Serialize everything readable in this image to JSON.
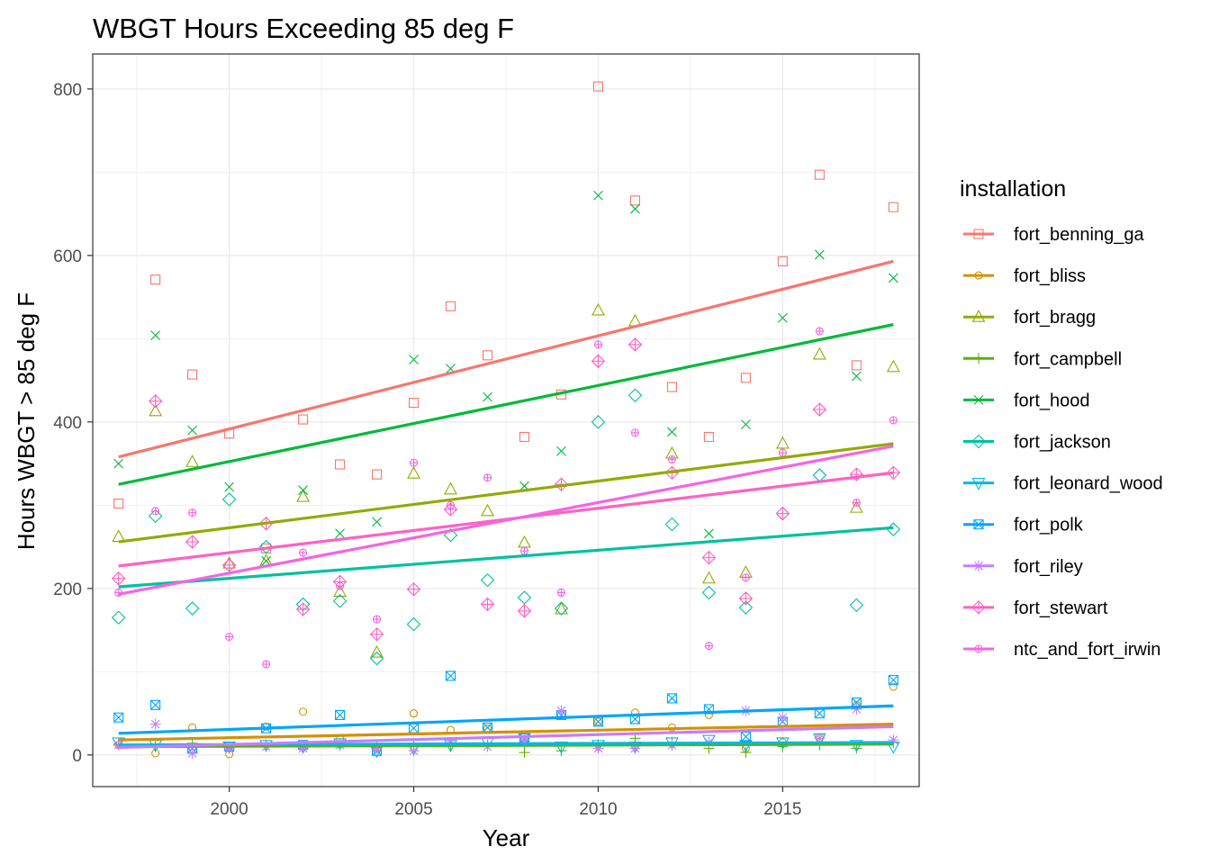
{
  "chart_data": {
    "type": "scatter",
    "title": "WBGT Hours Exceeding 85 deg F",
    "xlabel": "Year",
    "ylabel": "Hours WBGT > 85 deg F",
    "xlim": [
      1996.3,
      2018.7
    ],
    "ylim": [
      -38,
      842
    ],
    "x_ticks": [
      2000,
      2005,
      2010,
      2015
    ],
    "y_ticks": [
      0,
      200,
      400,
      600,
      800
    ],
    "grid": true,
    "legend_title": "installation",
    "legend_position": "right",
    "trend_lines": "linear fit per installation",
    "years": [
      1997,
      1998,
      1999,
      2000,
      2001,
      2002,
      2003,
      2004,
      2005,
      2006,
      2007,
      2008,
      2009,
      2010,
      2011,
      2012,
      2013,
      2014,
      2015,
      2016,
      2017,
      2018
    ],
    "series": [
      {
        "name": "fort_benning_ga",
        "color": "#F8766D",
        "shape": "square",
        "values": [
          302,
          571,
          457,
          386,
          248,
          403,
          349,
          337,
          423,
          539,
          480,
          382,
          433,
          803,
          666,
          442,
          382,
          453,
          593,
          697,
          468,
          658
        ],
        "fit": [
          358,
          593
        ]
      },
      {
        "name": "fort_bliss",
        "color": "#D39200",
        "shape": "circle",
        "values": [
          12,
          2,
          33,
          1,
          34,
          52,
          20,
          8,
          50,
          30,
          32,
          18,
          48,
          40,
          51,
          33,
          48,
          8,
          15,
          20,
          60,
          82
        ],
        "fit": [
          18,
          37
        ]
      },
      {
        "name": "fort_bragg",
        "color": "#93AA00",
        "shape": "triangle",
        "values": [
          262,
          413,
          352,
          230,
          233,
          310,
          196,
          123,
          338,
          319,
          293,
          255,
          175,
          534,
          521,
          362,
          212,
          219,
          374,
          481,
          297,
          466
        ],
        "fit": [
          256,
          374
        ]
      },
      {
        "name": "fort_campbell",
        "color": "#5BB300",
        "shape": "plus",
        "values": [
          13,
          10,
          14,
          8,
          12,
          11,
          12,
          9,
          10,
          10,
          12,
          3,
          5,
          12,
          20,
          15,
          8,
          3,
          10,
          12,
          8,
          15
        ],
        "fit": [
          10,
          13
        ]
      },
      {
        "name": "fort_hood",
        "color": "#00BA38",
        "shape": "cross",
        "values": [
          350,
          504,
          390,
          322,
          233,
          318,
          266,
          280,
          475,
          464,
          430,
          323,
          365,
          672,
          656,
          388,
          266,
          397,
          525,
          601,
          455,
          573
        ],
        "fit": [
          325,
          517
        ]
      },
      {
        "name": "fort_jackson",
        "color": "#00C19F",
        "shape": "diamond",
        "values": [
          165,
          287,
          176,
          307,
          250,
          181,
          185,
          116,
          157,
          264,
          210,
          189,
          176,
          400,
          432,
          277,
          195,
          177,
          290,
          336,
          180,
          271
        ],
        "fit": [
          202,
          273
        ]
      },
      {
        "name": "fort_leonard_wood",
        "color": "#00B9E3",
        "shape": "triangle-down",
        "values": [
          15,
          12,
          8,
          10,
          12,
          10,
          14,
          5,
          8,
          12,
          15,
          20,
          10,
          12,
          10,
          15,
          18,
          12,
          15,
          20,
          12,
          10
        ],
        "fit": [
          12,
          15
        ]
      },
      {
        "name": "fort_polk",
        "color": "#00A5FF",
        "shape": "square-cross",
        "values": [
          45,
          60,
          8,
          10,
          32,
          12,
          48,
          5,
          32,
          95,
          33,
          20,
          48,
          40,
          43,
          68,
          55,
          22,
          40,
          50,
          63,
          90
        ],
        "fit": [
          26,
          59
        ]
      },
      {
        "name": "fort_riley",
        "color": "#C77CFF",
        "shape": "asterisk",
        "values": [
          12,
          37,
          2,
          8,
          10,
          8,
          12,
          8,
          5,
          15,
          10,
          18,
          53,
          8,
          8,
          12,
          15,
          53,
          45,
          20,
          55,
          18
        ],
        "fit": [
          9,
          34
        ]
      },
      {
        "name": "fort_stewart",
        "color": "#FF61C3",
        "shape": "diamond-plus",
        "values": [
          212,
          425,
          256,
          228,
          278,
          175,
          208,
          145,
          199,
          295,
          181,
          173,
          325,
          473,
          493,
          339,
          237,
          188,
          290,
          415,
          337,
          339
        ],
        "fit": [
          227,
          339
        ]
      },
      {
        "name": "ntc_and_fort_irwin",
        "color": "#F564E3",
        "shape": "circle-plus",
        "values": [
          195,
          293,
          291,
          142,
          109,
          243,
          203,
          163,
          351,
          300,
          333,
          245,
          195,
          493,
          387,
          355,
          131,
          213,
          363,
          509,
          303,
          402
        ],
        "fit": [
          193,
          371
        ]
      }
    ]
  }
}
